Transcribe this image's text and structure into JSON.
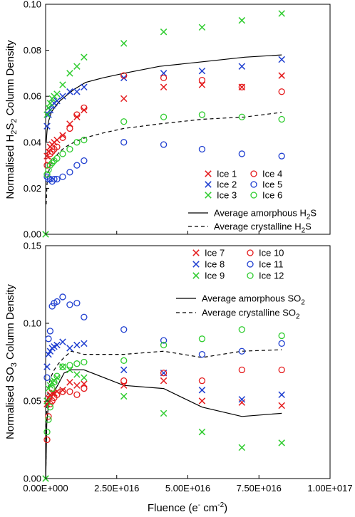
{
  "chart_data": [
    {
      "type": "scatter",
      "ylabel": "Normalised H2S2 Column Density",
      "ylabel_parts": {
        "prefix": "Normalised H",
        "sub1": "2",
        "mid": "S",
        "sub2": "2",
        "suffix": " Column Density"
      },
      "xlim": [
        0,
        1e+17
      ],
      "ylim": [
        0,
        0.1
      ],
      "yticks": [
        "0.00",
        "0.02",
        "0.04",
        "0.06",
        "0.08",
        "0.10"
      ],
      "legend_placement": "bottom-right",
      "series": [
        {
          "name": "Ice 1",
          "marker": "x",
          "color": "#e41a1c",
          "x": [
            500000000000000.0,
            1000000000000000.0,
            1600000000000000.0,
            2300000000000000.0,
            3000000000000000.0,
            4000000000000000.0,
            6000000000000000.0,
            8500000000000000.0,
            1.1e+16,
            1.35e+16,
            2.75e+16,
            4.15e+16,
            5.5e+16,
            6.9e+16,
            8.3e+16
          ],
          "y": [
            0.034,
            0.036,
            0.038,
            0.039,
            0.04,
            0.041,
            0.043,
            0.048,
            0.051,
            0.054,
            0.059,
            0.064,
            0.065,
            0.064,
            0.069
          ]
        },
        {
          "name": "Ice 2",
          "marker": "x",
          "color": "#1f3fd0",
          "x": [
            500000000000000.0,
            1000000000000000.0,
            1600000000000000.0,
            2300000000000000.0,
            3000000000000000.0,
            4000000000000000.0,
            6000000000000000.0,
            8500000000000000.0,
            1.1e+16,
            1.35e+16,
            2.75e+16,
            4.15e+16,
            5.5e+16,
            6.9e+16,
            8.3e+16
          ],
          "y": [
            0.047,
            0.052,
            0.054,
            0.056,
            0.057,
            0.058,
            0.06,
            0.062,
            0.062,
            0.064,
            0.068,
            0.07,
            0.071,
            0.073,
            0.076
          ]
        },
        {
          "name": "Ice 3",
          "marker": "x",
          "color": "#2ecc2e",
          "x": [
            0,
            500000000000000.0,
            1000000000000000.0,
            1600000000000000.0,
            2300000000000000.0,
            3000000000000000.0,
            4000000000000000.0,
            6000000000000000.0,
            8500000000000000.0,
            1.1e+16,
            1.35e+16,
            2.75e+16,
            4.15e+16,
            5.5e+16,
            6.9e+16,
            8.3e+16
          ],
          "y": [
            0.0,
            0.052,
            0.055,
            0.057,
            0.059,
            0.06,
            0.061,
            0.065,
            0.07,
            0.073,
            0.077,
            0.083,
            0.088,
            0.09,
            0.093,
            0.096
          ]
        },
        {
          "name": "Ice 4",
          "marker": "o",
          "color": "#e41a1c",
          "x": [
            500000000000000.0,
            1000000000000000.0,
            1600000000000000.0,
            2300000000000000.0,
            3000000000000000.0,
            4000000000000000.0,
            6000000000000000.0,
            8500000000000000.0,
            1.1e+16,
            1.35e+16,
            2.75e+16,
            4.15e+16,
            5.5e+16,
            6.9e+16,
            8.3e+16
          ],
          "y": [
            0.03,
            0.032,
            0.035,
            0.036,
            0.037,
            0.038,
            0.042,
            0.046,
            0.052,
            0.055,
            0.069,
            0.068,
            0.067,
            0.064,
            0.062
          ]
        },
        {
          "name": "Ice 5",
          "marker": "o",
          "color": "#1f3fd0",
          "x": [
            500000000000000.0,
            1000000000000000.0,
            1600000000000000.0,
            2300000000000000.0,
            3000000000000000.0,
            4000000000000000.0,
            6000000000000000.0,
            8500000000000000.0,
            1.1e+16,
            1.35e+16,
            2.75e+16,
            4.15e+16,
            5.5e+16,
            6.9e+16,
            8.3e+16
          ],
          "y": [
            0.025,
            0.024,
            0.024,
            0.023,
            0.024,
            0.024,
            0.025,
            0.027,
            0.03,
            0.032,
            0.04,
            0.039,
            0.037,
            0.035,
            0.034
          ]
        },
        {
          "name": "Ice 6",
          "marker": "o",
          "color": "#2ecc2e",
          "x": [
            500000000000000.0,
            1000000000000000.0,
            1600000000000000.0,
            2300000000000000.0,
            3000000000000000.0,
            4000000000000000.0,
            6000000000000000.0,
            8500000000000000.0,
            1.1e+16,
            1.35e+16,
            2.75e+16,
            4.15e+16,
            5.5e+16,
            6.9e+16,
            8.3e+16
          ],
          "y": [
            0.026,
            0.028,
            0.03,
            0.031,
            0.032,
            0.033,
            0.035,
            0.037,
            0.04,
            0.041,
            0.049,
            0.051,
            0.052,
            0.051,
            0.05
          ]
        }
      ],
      "lines": [
        {
          "name": "Average amorphous H2S",
          "style": "solid",
          "x": [
            200000000000000.0,
            500000000000000.0,
            1000000000000000.0,
            2000000000000000.0,
            3000000000000000.0,
            5000000000000000.0,
            7000000000000000.0,
            1e+16,
            1.4e+16,
            2e+16,
            2.75e+16,
            4e+16,
            5.5e+16,
            7e+16,
            8.3e+16
          ],
          "y": [
            0.04,
            0.045,
            0.049,
            0.053,
            0.055,
            0.058,
            0.06,
            0.063,
            0.066,
            0.068,
            0.07,
            0.073,
            0.075,
            0.077,
            0.078
          ]
        },
        {
          "name": "Average crystalline H2S",
          "style": "dashed",
          "x": [
            200000000000000.0,
            500000000000000.0,
            1000000000000000.0,
            2000000000000000.0,
            3000000000000000.0,
            5000000000000000.0,
            7000000000000000.0,
            1e+16,
            1.4e+16,
            2e+16,
            2.75e+16,
            4e+16,
            5.5e+16,
            7e+16,
            8.3e+16
          ],
          "y": [
            0.013,
            0.022,
            0.027,
            0.031,
            0.033,
            0.036,
            0.038,
            0.04,
            0.042,
            0.044,
            0.046,
            0.048,
            0.05,
            0.051,
            0.053
          ]
        }
      ],
      "legend": {
        "markers": [
          "Ice 1",
          "Ice 4",
          "Ice 2",
          "Ice 5",
          "Ice 3",
          "Ice 6"
        ],
        "line1": {
          "prefix": "Average amorphous H",
          "sub": "2",
          "suffix": "S"
        },
        "line2": {
          "prefix": "Average crystalline H",
          "sub": "2",
          "suffix": "S"
        }
      }
    },
    {
      "type": "scatter",
      "ylabel": "Normalised SO3 Column Density",
      "ylabel_parts": {
        "prefix": "Normalised SO",
        "sub1": "3",
        "suffix": " Column Density"
      },
      "xlabel": "Fluence (e- cm-2)",
      "xlabel_parts": {
        "prefix": "Fluence (e",
        "sup1": "-",
        "mid": " cm",
        "sup2": "-2",
        "suffix": ")"
      },
      "xlim": [
        0,
        1e+17
      ],
      "ylim": [
        0,
        0.15
      ],
      "xticks": [
        "0.00E+000",
        "2.50E+016",
        "5.00E+016",
        "7.50E+016",
        "1.00E+017"
      ],
      "yticks": [
        "0.00",
        "0.05",
        "0.10",
        "0.15"
      ],
      "legend_placement": "top-right",
      "series": [
        {
          "name": "Ice 7",
          "marker": "x",
          "color": "#e41a1c",
          "x": [
            500000000000000.0,
            1000000000000000.0,
            1600000000000000.0,
            2300000000000000.0,
            3000000000000000.0,
            4000000000000000.0,
            6000000000000000.0,
            8500000000000000.0,
            1.1e+16,
            1.35e+16,
            2.75e+16,
            4.15e+16,
            5.5e+16,
            6.9e+16,
            8.3e+16
          ],
          "y": [
            0.048,
            0.052,
            0.054,
            0.055,
            0.055,
            0.056,
            0.057,
            0.062,
            0.06,
            0.061,
            0.06,
            0.063,
            0.05,
            0.049,
            0.047
          ]
        },
        {
          "name": "Ice 8",
          "marker": "x",
          "color": "#1f3fd0",
          "x": [
            500000000000000.0,
            1000000000000000.0,
            1600000000000000.0,
            2300000000000000.0,
            3000000000000000.0,
            4000000000000000.0,
            6000000000000000.0,
            8500000000000000.0,
            1.1e+16,
            1.35e+16,
            2.75e+16,
            4.15e+16,
            5.5e+16,
            6.9e+16,
            8.3e+16
          ],
          "y": [
            0.072,
            0.08,
            0.082,
            0.084,
            0.085,
            0.086,
            0.088,
            0.084,
            0.086,
            0.087,
            0.07,
            0.068,
            0.057,
            0.051,
            0.054
          ]
        },
        {
          "name": "Ice 9",
          "marker": "x",
          "color": "#2ecc2e",
          "x": [
            0,
            500000000000000.0,
            1000000000000000.0,
            1600000000000000.0,
            2300000000000000.0,
            3000000000000000.0,
            4000000000000000.0,
            6000000000000000.0,
            8500000000000000.0,
            1.1e+16,
            1.35e+16,
            2.75e+16,
            4.15e+16,
            5.5e+16,
            6.9e+16,
            8.3e+16
          ],
          "y": [
            0.0,
            0.05,
            0.058,
            0.06,
            0.062,
            0.063,
            0.065,
            0.072,
            0.07,
            0.067,
            0.065,
            0.053,
            0.042,
            0.03,
            0.02,
            0.023
          ]
        },
        {
          "name": "Ice 10",
          "marker": "o",
          "color": "#e41a1c",
          "x": [
            500000000000000.0,
            1000000000000000.0,
            1600000000000000.0,
            2300000000000000.0,
            3000000000000000.0,
            4000000000000000.0,
            6000000000000000.0,
            8500000000000000.0,
            1.1e+16,
            1.35e+16,
            2.75e+16,
            4.15e+16,
            5.5e+16,
            6.9e+16,
            8.3e+16
          ],
          "y": [
            0.025,
            0.04,
            0.048,
            0.05,
            0.052,
            0.054,
            0.056,
            0.056,
            0.054,
            0.058,
            0.063,
            0.068,
            0.063,
            0.07,
            0.07
          ]
        },
        {
          "name": "Ice 11",
          "marker": "o",
          "color": "#1f3fd0",
          "x": [
            500000000000000.0,
            1000000000000000.0,
            1600000000000000.0,
            2300000000000000.0,
            3000000000000000.0,
            4000000000000000.0,
            6000000000000000.0,
            8500000000000000.0,
            1.1e+16,
            1.35e+16,
            2.75e+16,
            4.15e+16,
            5.5e+16,
            6.9e+16,
            8.3e+16
          ],
          "y": [
            0.065,
            0.09,
            0.095,
            0.111,
            0.113,
            0.114,
            0.117,
            0.112,
            0.113,
            0.104,
            0.096,
            0.089,
            0.08,
            0.082,
            0.087
          ]
        },
        {
          "name": "Ice 12",
          "marker": "o",
          "color": "#2ecc2e",
          "x": [
            500000000000000.0,
            1000000000000000.0,
            1600000000000000.0,
            2300000000000000.0,
            3000000000000000.0,
            4000000000000000.0,
            6000000000000000.0,
            8500000000000000.0,
            1.1e+16,
            1.35e+16,
            2.75e+16,
            4.15e+16,
            5.5e+16,
            6.9e+16,
            8.3e+16
          ],
          "y": [
            0.03,
            0.038,
            0.046,
            0.058,
            0.062,
            0.066,
            0.072,
            0.073,
            0.074,
            0.075,
            0.076,
            0.086,
            0.09,
            0.096,
            0.092
          ]
        }
      ],
      "lines": [
        {
          "name": "Average amorphous SO2",
          "style": "solid",
          "x": [
            50000000000000.0,
            400000000000000.0,
            1000000000000000.0,
            2000000000000000.0,
            3000000000000000.0,
            4500000000000000.0,
            6500000000000000.0,
            9000000000000000.0,
            1.35e+16,
            2.75e+16,
            4.15e+16,
            5.5e+16,
            6.9e+16,
            8.3e+16
          ],
          "y": [
            0.0,
            0.035,
            0.048,
            0.053,
            0.056,
            0.061,
            0.068,
            0.07,
            0.07,
            0.06,
            0.058,
            0.046,
            0.04,
            0.042
          ]
        },
        {
          "name": "Average crystalline SO2",
          "style": "dashed",
          "x": [
            50000000000000.0,
            400000000000000.0,
            1000000000000000.0,
            2000000000000000.0,
            3000000000000000.0,
            4500000000000000.0,
            6500000000000000.0,
            9000000000000000.0,
            1.35e+16,
            2.75e+16,
            4.15e+16,
            5.5e+16,
            6.9e+16,
            8.3e+16
          ],
          "y": [
            0.0,
            0.045,
            0.06,
            0.066,
            0.07,
            0.074,
            0.078,
            0.082,
            0.08,
            0.08,
            0.082,
            0.078,
            0.082,
            0.083
          ]
        }
      ],
      "legend": {
        "markers": [
          "Ice 7",
          "Ice 10",
          "Ice 8",
          "Ice 11",
          "Ice 9",
          "Ice 12"
        ],
        "line1": {
          "prefix": "Average amorphous SO",
          "sub": "2",
          "suffix": ""
        },
        "line2": {
          "prefix": "Average crystalline SO",
          "sub": "2",
          "suffix": ""
        }
      }
    }
  ]
}
